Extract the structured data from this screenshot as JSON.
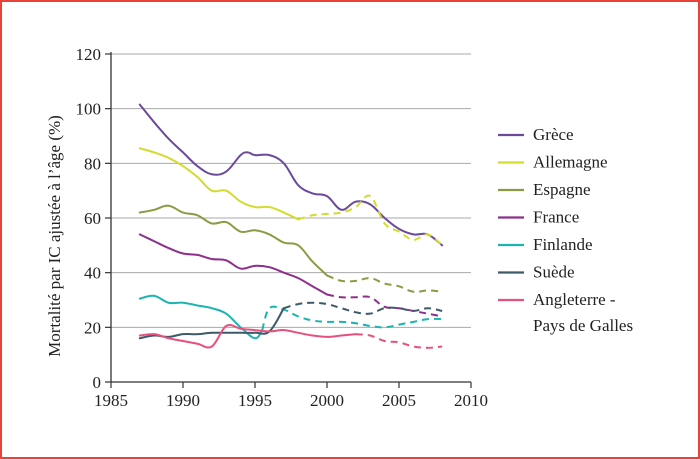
{
  "chart_data": {
    "type": "line",
    "title": "",
    "xlabel": "",
    "ylabel": "Mortalité par IC ajustée à l’âge (%)",
    "xlim": [
      1985,
      2010
    ],
    "ylim": [
      0,
      120
    ],
    "xticks": [
      1985,
      1990,
      1995,
      2000,
      2005,
      2010
    ],
    "yticks": [
      0,
      20,
      40,
      60,
      80,
      100,
      120
    ],
    "grid": "horizontal",
    "legend_position": "right",
    "series": [
      {
        "name": "Grèce",
        "color": "#6b4a9c",
        "x": [
          1987,
          1988,
          1989,
          1990,
          1991,
          1992,
          1993,
          1994,
          1994.5,
          1995,
          1996,
          1997,
          1998,
          1999,
          2000,
          2001,
          2002,
          2003,
          2004,
          2005,
          2006,
          2007,
          2008
        ],
        "y": [
          101.5,
          95,
          89,
          84,
          79,
          76,
          77,
          83,
          84,
          83,
          83,
          80,
          72,
          69,
          68,
          63,
          66,
          65,
          60,
          56,
          54,
          54,
          50
        ],
        "dashed_from": null
      },
      {
        "name": "Allemagne",
        "color": "#d2dc2c",
        "x": [
          1987,
          1988,
          1989,
          1990,
          1991,
          1992,
          1993,
          1994,
          1995,
          1996,
          1997,
          1998,
          1999,
          2000,
          2001,
          2002,
          2003,
          2004,
          2005,
          2006,
          2007,
          2008
        ],
        "y": [
          85.5,
          84,
          82,
          79,
          75,
          70,
          70,
          66,
          64,
          64,
          62,
          59.5,
          61,
          61.5,
          62,
          64,
          68,
          58,
          55,
          52,
          54,
          50
        ],
        "dashed_from": 1998
      },
      {
        "name": "Espagne",
        "color": "#8c9a44",
        "x": [
          1987,
          1988,
          1989,
          1990,
          1991,
          1992,
          1993,
          1994,
          1995,
          1996,
          1997,
          1998,
          1999,
          2000,
          2001,
          2002,
          2003,
          2004,
          2005,
          2006,
          2007,
          2008
        ],
        "y": [
          62,
          63,
          64.5,
          62,
          61,
          58,
          58.5,
          55,
          55.5,
          54,
          51,
          50,
          44,
          39,
          37,
          37,
          38,
          36,
          35,
          33,
          33.5,
          33
        ],
        "dashed_from": 2000
      },
      {
        "name": "France",
        "color": "#8e2f8c",
        "x": [
          1987,
          1988,
          1989,
          1990,
          1991,
          1992,
          1993,
          1994,
          1995,
          1996,
          1997,
          1998,
          1999,
          2000,
          2001,
          2002,
          2003,
          2004,
          2005,
          2006,
          2007,
          2008
        ],
        "y": [
          54,
          51.5,
          49,
          47,
          46.5,
          45,
          44.5,
          41.5,
          42.5,
          42,
          40,
          38,
          35,
          32,
          31,
          31,
          31,
          27.5,
          27,
          26,
          25,
          24
        ],
        "dashed_from": 2000
      },
      {
        "name": "Finlande",
        "color": "#1bb5b0",
        "x": [
          1987,
          1988,
          1989,
          1990,
          1991,
          1992,
          1993,
          1994,
          1995,
          1995.5,
          1996,
          1997,
          1998,
          1999,
          2000,
          2001,
          2002,
          2003,
          2004,
          2005,
          2006,
          2007,
          2008
        ],
        "y": [
          30.5,
          31.5,
          29,
          29,
          28,
          27,
          25,
          20,
          16,
          19,
          27,
          26.5,
          24,
          22.5,
          22,
          22,
          21.5,
          20.5,
          20,
          21,
          22,
          23,
          23
        ],
        "dashed_from": 1995.5
      },
      {
        "name": "Suède",
        "color": "#3d5a6b",
        "x": [
          1987,
          1988,
          1989,
          1990,
          1991,
          1992,
          1993,
          1994,
          1995,
          1996,
          1997,
          1998,
          1999,
          2000,
          2001,
          2002,
          2003,
          2004,
          2005,
          2006,
          2007,
          2008
        ],
        "y": [
          16,
          17,
          16.5,
          17.5,
          17.5,
          18,
          18,
          18,
          18,
          18.5,
          27,
          28.5,
          29,
          28.5,
          27,
          25.5,
          25,
          27,
          27,
          26,
          27,
          26
        ],
        "dashed_from": 1997
      },
      {
        "name": "Angleterre - Pays de Galles",
        "color": "#e8507e",
        "x": [
          1987,
          1988,
          1989,
          1990,
          1991,
          1992,
          1993,
          1994,
          1995,
          1996,
          1997,
          1998,
          1999,
          2000,
          2001,
          2002,
          2003,
          2004,
          2005,
          2006,
          2007,
          2008
        ],
        "y": [
          17,
          17.5,
          16,
          15,
          14,
          13,
          20.5,
          19.5,
          19,
          18.5,
          19,
          18,
          17,
          16.5,
          17,
          17.5,
          17,
          15,
          14.5,
          13,
          12.5,
          13
        ],
        "dashed_from": 2002
      }
    ]
  }
}
